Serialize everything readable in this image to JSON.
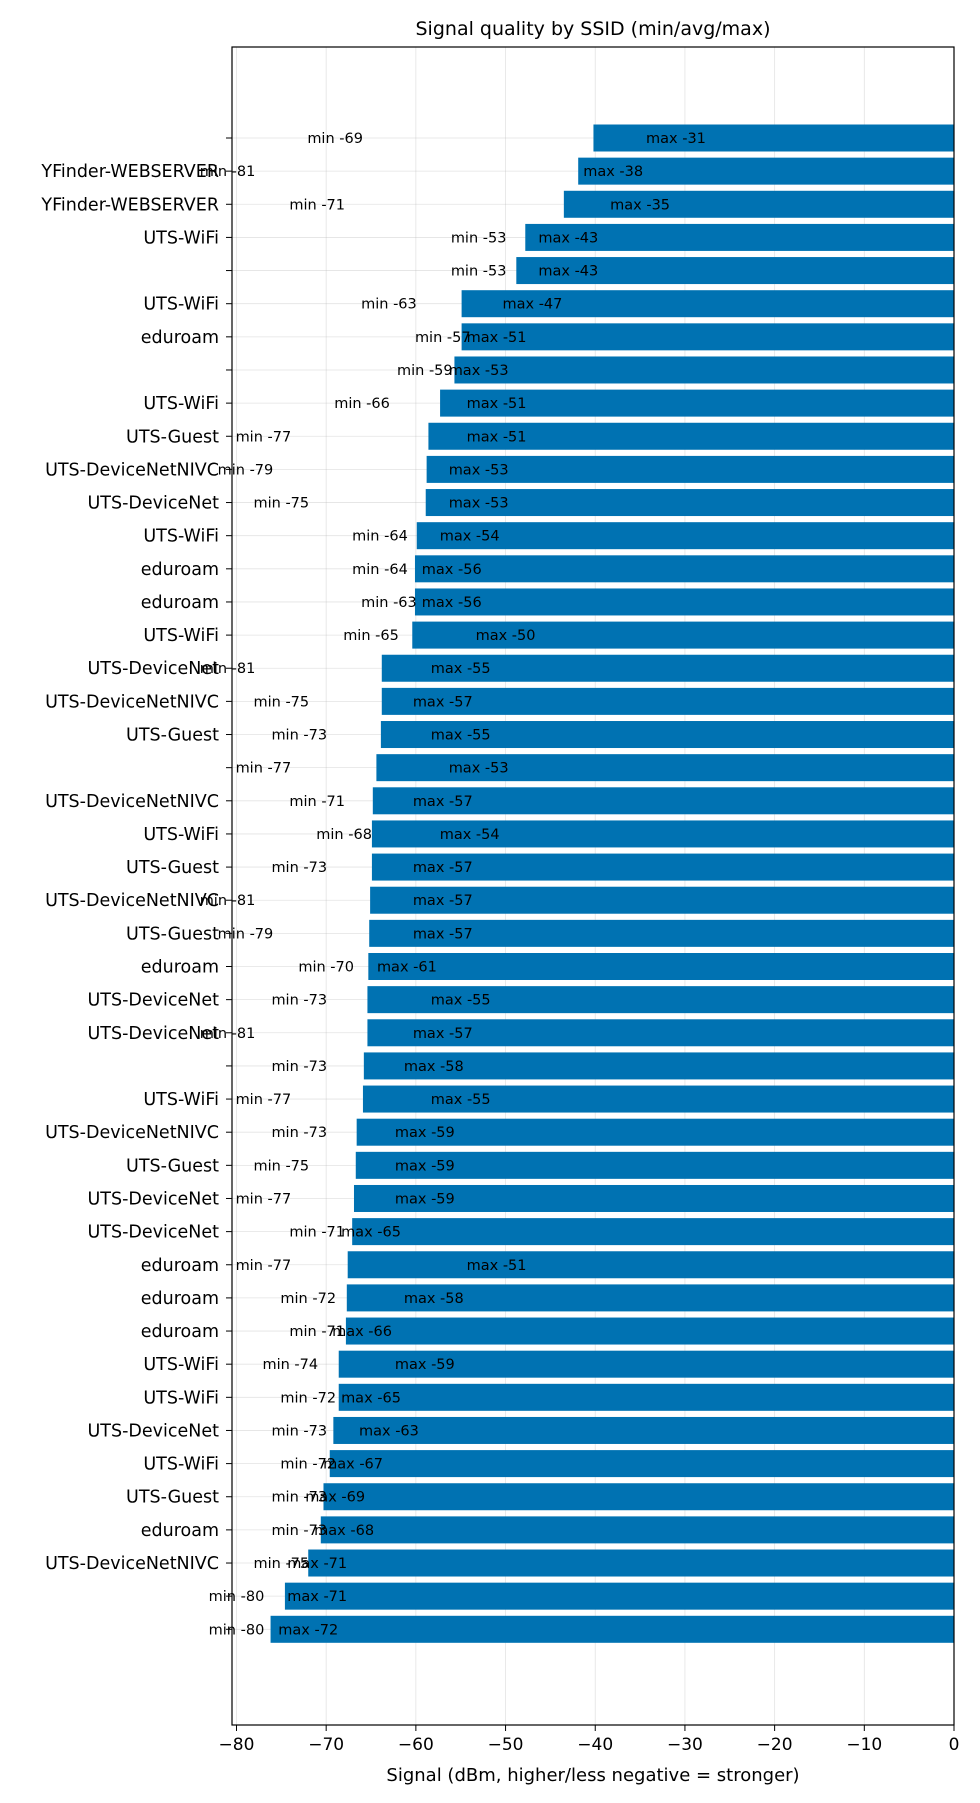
{
  "chart_data": {
    "type": "bar",
    "orientation": "horizontal",
    "title": "Signal quality by SSID (min/avg/max)",
    "xlabel": "Signal (dBm, higher/less negative = stronger)",
    "ylabel": "",
    "xlim": [
      -80.5,
      0
    ],
    "xticks": [
      -80,
      -70,
      -60,
      -50,
      -40,
      -30,
      -20,
      -10,
      0
    ],
    "xtick_labels": [
      "−80",
      "−70",
      "−60",
      "−50",
      "−40",
      "−30",
      "−20",
      "−10",
      "0"
    ],
    "grid": true,
    "bar_color": "#0072b2",
    "bars": [
      {
        "ssid": "",
        "avg": -40.2,
        "min_label": "min -69",
        "min": -69,
        "max_label": "max -31",
        "max": -31
      },
      {
        "ssid": "YFinder-WEBSERVER",
        "avg": -41.9,
        "min_label": "min -81",
        "min": -81,
        "max_label": "max -38",
        "max": -38
      },
      {
        "ssid": "YFinder-WEBSERVER",
        "avg": -43.5,
        "min_label": "min -71",
        "min": -71,
        "max_label": "max -35",
        "max": -35
      },
      {
        "ssid": "UTS-WiFi",
        "avg": -47.8,
        "min_label": "min -53",
        "min": -53,
        "max_label": "max -43",
        "max": -43
      },
      {
        "ssid": "",
        "avg": -48.8,
        "min_label": "min -53",
        "min": -53,
        "max_label": "max -43",
        "max": -43
      },
      {
        "ssid": "UTS-WiFi",
        "avg": -54.9,
        "min_label": "min -63",
        "min": -63,
        "max_label": "max -47",
        "max": -47
      },
      {
        "ssid": "eduroam",
        "avg": -54.9,
        "min_label": "min -57",
        "min": -57,
        "max_label": "max -51",
        "max": -51
      },
      {
        "ssid": "",
        "avg": -55.7,
        "min_label": "min -59",
        "min": -59,
        "max_label": "max -53",
        "max": -53
      },
      {
        "ssid": "UTS-WiFi",
        "avg": -57.3,
        "min_label": "min -66",
        "min": -66,
        "max_label": "max -51",
        "max": -51
      },
      {
        "ssid": "UTS-Guest",
        "avg": -58.6,
        "min_label": "min -77",
        "min": -77,
        "max_label": "max -51",
        "max": -51
      },
      {
        "ssid": "UTS-DeviceNetNIVC",
        "avg": -58.8,
        "min_label": "min -79",
        "min": -79,
        "max_label": "max -53",
        "max": -53
      },
      {
        "ssid": "UTS-DeviceNet",
        "avg": -58.9,
        "min_label": "min -75",
        "min": -75,
        "max_label": "max -53",
        "max": -53
      },
      {
        "ssid": "UTS-WiFi",
        "avg": -59.9,
        "min_label": "min -64",
        "min": -64,
        "max_label": "max -54",
        "max": -54
      },
      {
        "ssid": "eduroam",
        "avg": -60.1,
        "min_label": "min -64",
        "min": -64,
        "max_label": "max -56",
        "max": -56
      },
      {
        "ssid": "eduroam",
        "avg": -60.1,
        "min_label": "min -63",
        "min": -63,
        "max_label": "max -56",
        "max": -56
      },
      {
        "ssid": "UTS-WiFi",
        "avg": -60.4,
        "min_label": "min -65",
        "min": -65,
        "max_label": "max -50",
        "max": -50
      },
      {
        "ssid": "UTS-DeviceNet",
        "avg": -63.8,
        "min_label": "min -81",
        "min": -81,
        "max_label": "max -55",
        "max": -55
      },
      {
        "ssid": "UTS-DeviceNetNIVC",
        "avg": -63.8,
        "min_label": "min -75",
        "min": -75,
        "max_label": "max -57",
        "max": -57
      },
      {
        "ssid": "UTS-Guest",
        "avg": -63.9,
        "min_label": "min -73",
        "min": -73,
        "max_label": "max -55",
        "max": -55
      },
      {
        "ssid": "",
        "avg": -64.4,
        "min_label": "min -77",
        "min": -77,
        "max_label": "max -53",
        "max": -53
      },
      {
        "ssid": "UTS-DeviceNetNIVC",
        "avg": -64.8,
        "min_label": "min -71",
        "min": -71,
        "max_label": "max -57",
        "max": -57
      },
      {
        "ssid": "UTS-WiFi",
        "avg": -64.9,
        "min_label": "min -68",
        "min": -68,
        "max_label": "max -54",
        "max": -54
      },
      {
        "ssid": "UTS-Guest",
        "avg": -64.9,
        "min_label": "min -73",
        "min": -73,
        "max_label": "max -57",
        "max": -57
      },
      {
        "ssid": "UTS-DeviceNetNIVC",
        "avg": -65.1,
        "min_label": "min -81",
        "min": -81,
        "max_label": "max -57",
        "max": -57
      },
      {
        "ssid": "UTS-Guest",
        "avg": -65.2,
        "min_label": "min -79",
        "min": -79,
        "max_label": "max -57",
        "max": -57
      },
      {
        "ssid": "eduroam",
        "avg": -65.3,
        "min_label": "min -70",
        "min": -70,
        "max_label": "max -61",
        "max": -61
      },
      {
        "ssid": "UTS-DeviceNet",
        "avg": -65.4,
        "min_label": "min -73",
        "min": -73,
        "max_label": "max -55",
        "max": -55
      },
      {
        "ssid": "UTS-DeviceNet",
        "avg": -65.4,
        "min_label": "min -81",
        "min": -81,
        "max_label": "max -57",
        "max": -57
      },
      {
        "ssid": "",
        "avg": -65.8,
        "min_label": "min -73",
        "min": -73,
        "max_label": "max -58",
        "max": -58
      },
      {
        "ssid": "UTS-WiFi",
        "avg": -65.9,
        "min_label": "min -77",
        "min": -77,
        "max_label": "max -55",
        "max": -55
      },
      {
        "ssid": "UTS-DeviceNetNIVC",
        "avg": -66.6,
        "min_label": "min -73",
        "min": -73,
        "max_label": "max -59",
        "max": -59
      },
      {
        "ssid": "UTS-Guest",
        "avg": -66.7,
        "min_label": "min -75",
        "min": -75,
        "max_label": "max -59",
        "max": -59
      },
      {
        "ssid": "UTS-DeviceNet",
        "avg": -66.9,
        "min_label": "min -77",
        "min": -77,
        "max_label": "max -59",
        "max": -59
      },
      {
        "ssid": "UTS-DeviceNet",
        "avg": -67.1,
        "min_label": "min -71",
        "min": -71,
        "max_label": "max -65",
        "max": -65
      },
      {
        "ssid": "eduroam",
        "avg": -67.6,
        "min_label": "min -77",
        "min": -77,
        "max_label": "max -51",
        "max": -51
      },
      {
        "ssid": "eduroam",
        "avg": -67.7,
        "min_label": "min -72",
        "min": -72,
        "max_label": "max -58",
        "max": -58
      },
      {
        "ssid": "eduroam",
        "avg": -67.8,
        "min_label": "min -71",
        "min": -71,
        "max_label": "max -66",
        "max": -66
      },
      {
        "ssid": "UTS-WiFi",
        "avg": -68.6,
        "min_label": "min -74",
        "min": -74,
        "max_label": "max -59",
        "max": -59
      },
      {
        "ssid": "UTS-WiFi",
        "avg": -68.6,
        "min_label": "min -72",
        "min": -72,
        "max_label": "max -65",
        "max": -65
      },
      {
        "ssid": "UTS-DeviceNet",
        "avg": -69.2,
        "min_label": "min -73",
        "min": -73,
        "max_label": "max -63",
        "max": -63
      },
      {
        "ssid": "UTS-WiFi",
        "avg": -69.6,
        "min_label": "min -72",
        "min": -72,
        "max_label": "max -67",
        "max": -67
      },
      {
        "ssid": "UTS-Guest",
        "avg": -70.3,
        "min_label": "min -73",
        "min": -73,
        "max_label": "max -69",
        "max": -69
      },
      {
        "ssid": "eduroam",
        "avg": -70.6,
        "min_label": "min -73",
        "min": -73,
        "max_label": "max -68",
        "max": -68
      },
      {
        "ssid": "UTS-DeviceNetNIVC",
        "avg": -72.0,
        "min_label": "min -75",
        "min": -75,
        "max_label": "max -71",
        "max": -71
      },
      {
        "ssid": "",
        "avg": -74.6,
        "min_label": "min -80",
        "min": -80,
        "max_label": "max -71",
        "max": -71
      },
      {
        "ssid": "",
        "avg": -76.2,
        "min_label": "min -80",
        "min": -80,
        "max_label": "max -72",
        "max": -72
      }
    ]
  }
}
